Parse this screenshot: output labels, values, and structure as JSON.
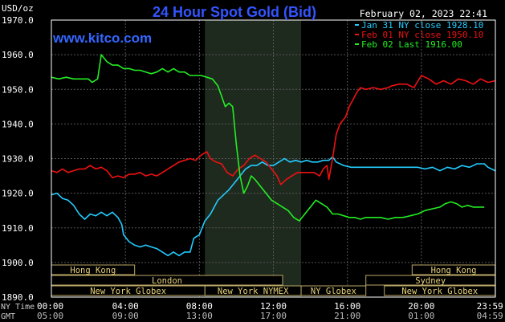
{
  "chart_data": {
    "type": "line",
    "title": "24 Hour Spot Gold (Bid)",
    "site": "www.kitco.com",
    "timestamp": "February 02, 2023 22:41",
    "ylabel": "USD/oz",
    "ylim": [
      1890,
      1970
    ],
    "yticks": [
      "1970.0",
      "1960.0",
      "1950.0",
      "1940.0",
      "1930.0",
      "1920.0",
      "1910.0",
      "1900.0",
      "1890.0"
    ],
    "grid": true,
    "legend_position": "top-right",
    "x_axis_rows": [
      {
        "label": "NY Time",
        "ticks": [
          "00:00",
          "04:00",
          "08:00",
          "12:00",
          "16:00",
          "20:00",
          "23:59"
        ]
      },
      {
        "label": "GMT",
        "ticks": [
          "05:00",
          "09:00",
          "13:00",
          "17:00",
          "21:00",
          "01:00",
          "04:59"
        ]
      }
    ],
    "shaded_period": {
      "from_hour": 8.3,
      "to_hour": 13.5
    },
    "sessions": [
      {
        "label": "Hong Kong",
        "start_hour": 0,
        "end_hour": 4.5,
        "row": 0
      },
      {
        "label": "Hong Kong",
        "start_hour": 19.5,
        "end_hour": 23.99,
        "row": 0
      },
      {
        "label": "London",
        "start_hour": 0,
        "end_hour": 12.5,
        "row": 1
      },
      {
        "label": "Sydney",
        "start_hour": 17,
        "end_hour": 23.99,
        "row": 1
      },
      {
        "label": "New York Globex",
        "start_hour": 0,
        "end_hour": 8.3,
        "row": 2
      },
      {
        "label": "New York NYMEX",
        "start_hour": 8.3,
        "end_hour": 13.5,
        "row": 2
      },
      {
        "label": "NY Globex",
        "start_hour": 13.5,
        "end_hour": 17,
        "row": 2
      },
      {
        "label": "New York Globex",
        "start_hour": 18,
        "end_hour": 23.99,
        "row": 2
      }
    ],
    "series": [
      {
        "name": "Jan 31 NY close 1928.10",
        "color": "#22ccff",
        "points": [
          [
            0,
            1919.5
          ],
          [
            0.3,
            1920
          ],
          [
            0.6,
            1918.5
          ],
          [
            0.9,
            1918
          ],
          [
            1.2,
            1916.5
          ],
          [
            1.5,
            1914
          ],
          [
            1.8,
            1912.5
          ],
          [
            2.1,
            1914
          ],
          [
            2.4,
            1913.5
          ],
          [
            2.7,
            1914.5
          ],
          [
            3.0,
            1913.5
          ],
          [
            3.3,
            1914.5
          ],
          [
            3.6,
            1913
          ],
          [
            3.8,
            1911
          ],
          [
            3.9,
            1908
          ],
          [
            4.2,
            1906
          ],
          [
            4.5,
            1905
          ],
          [
            4.8,
            1904.5
          ],
          [
            5.1,
            1905
          ],
          [
            5.4,
            1904.5
          ],
          [
            5.7,
            1904
          ],
          [
            6.0,
            1903
          ],
          [
            6.3,
            1902
          ],
          [
            6.6,
            1903
          ],
          [
            6.9,
            1902
          ],
          [
            7.2,
            1903
          ],
          [
            7.5,
            1903
          ],
          [
            7.7,
            1907
          ],
          [
            8.0,
            1908
          ],
          [
            8.3,
            1912
          ],
          [
            8.6,
            1914
          ],
          [
            9.0,
            1918
          ],
          [
            9.3,
            1919.5
          ],
          [
            9.6,
            1921
          ],
          [
            9.9,
            1923
          ],
          [
            10.2,
            1925
          ],
          [
            10.5,
            1927
          ],
          [
            10.8,
            1928
          ],
          [
            11.1,
            1928
          ],
          [
            11.4,
            1929
          ],
          [
            11.7,
            1928
          ],
          [
            12.0,
            1928
          ],
          [
            12.3,
            1929
          ],
          [
            12.6,
            1930
          ],
          [
            12.9,
            1929
          ],
          [
            13.2,
            1929.5
          ],
          [
            13.5,
            1929
          ],
          [
            13.8,
            1929.5
          ],
          [
            14.1,
            1929
          ],
          [
            14.4,
            1929
          ],
          [
            14.7,
            1929.5
          ],
          [
            15.0,
            1929.5
          ],
          [
            15.2,
            1930.5
          ],
          [
            15.4,
            1929
          ],
          [
            15.8,
            1928
          ],
          [
            16.2,
            1927.5
          ],
          [
            16.6,
            1927.5
          ],
          [
            17.0,
            1927.5
          ],
          [
            17.4,
            1927.5
          ],
          [
            17.8,
            1927.5
          ],
          [
            18.2,
            1927.5
          ],
          [
            18.6,
            1927.5
          ],
          [
            19.0,
            1927.5
          ],
          [
            19.4,
            1927.5
          ],
          [
            19.8,
            1927.5
          ],
          [
            20.2,
            1927
          ],
          [
            20.6,
            1927.5
          ],
          [
            21.0,
            1926.5
          ],
          [
            21.4,
            1927.5
          ],
          [
            21.8,
            1927
          ],
          [
            22.2,
            1928
          ],
          [
            22.6,
            1927.5
          ],
          [
            23.0,
            1928.5
          ],
          [
            23.4,
            1928.5
          ],
          [
            23.6,
            1927.5
          ],
          [
            23.99,
            1926.5
          ]
        ]
      },
      {
        "name": "Feb 01 NY close 1950.10",
        "color": "#ee1111",
        "points": [
          [
            0,
            1926.5
          ],
          [
            0.3,
            1926
          ],
          [
            0.6,
            1927
          ],
          [
            0.9,
            1926
          ],
          [
            1.2,
            1926.5
          ],
          [
            1.5,
            1927
          ],
          [
            1.8,
            1927
          ],
          [
            2.1,
            1928
          ],
          [
            2.4,
            1927
          ],
          [
            2.7,
            1927.5
          ],
          [
            3.0,
            1926.5
          ],
          [
            3.3,
            1924.5
          ],
          [
            3.6,
            1925
          ],
          [
            3.9,
            1924.5
          ],
          [
            4.2,
            1925.5
          ],
          [
            4.5,
            1925.5
          ],
          [
            4.8,
            1926
          ],
          [
            5.1,
            1925
          ],
          [
            5.4,
            1925.5
          ],
          [
            5.7,
            1925
          ],
          [
            6.0,
            1926
          ],
          [
            6.3,
            1927
          ],
          [
            6.6,
            1928
          ],
          [
            6.9,
            1929
          ],
          [
            7.2,
            1929.5
          ],
          [
            7.5,
            1930
          ],
          [
            7.8,
            1929.5
          ],
          [
            8.1,
            1931
          ],
          [
            8.4,
            1932
          ],
          [
            8.6,
            1930
          ],
          [
            8.9,
            1929
          ],
          [
            9.2,
            1928.5
          ],
          [
            9.5,
            1926
          ],
          [
            9.8,
            1925
          ],
          [
            10.1,
            1927
          ],
          [
            10.4,
            1928
          ],
          [
            10.7,
            1930
          ],
          [
            11.0,
            1931
          ],
          [
            11.3,
            1930
          ],
          [
            11.6,
            1929
          ],
          [
            11.9,
            1927
          ],
          [
            12.2,
            1925
          ],
          [
            12.4,
            1922.5
          ],
          [
            12.7,
            1924
          ],
          [
            13.0,
            1925
          ],
          [
            13.3,
            1926
          ],
          [
            13.6,
            1926
          ],
          [
            13.9,
            1926
          ],
          [
            14.2,
            1926
          ],
          [
            14.5,
            1925
          ],
          [
            14.7,
            1927
          ],
          [
            14.9,
            1928
          ],
          [
            15.0,
            1924
          ],
          [
            15.2,
            1930
          ],
          [
            15.4,
            1937
          ],
          [
            15.6,
            1940
          ],
          [
            15.9,
            1942
          ],
          [
            16.1,
            1945
          ],
          [
            16.3,
            1947
          ],
          [
            16.5,
            1949
          ],
          [
            16.7,
            1950.5
          ],
          [
            17.0,
            1950
          ],
          [
            17.4,
            1950.5
          ],
          [
            17.8,
            1950
          ],
          [
            18.2,
            1950.5
          ],
          [
            18.4,
            1951
          ],
          [
            18.8,
            1951.5
          ],
          [
            19.2,
            1951.5
          ],
          [
            19.6,
            1950.5
          ],
          [
            20.0,
            1954
          ],
          [
            20.4,
            1953
          ],
          [
            20.8,
            1951.5
          ],
          [
            21.2,
            1952.5
          ],
          [
            21.6,
            1951.5
          ],
          [
            22.0,
            1953
          ],
          [
            22.4,
            1952.5
          ],
          [
            22.8,
            1951.5
          ],
          [
            23.2,
            1953
          ],
          [
            23.6,
            1952
          ],
          [
            23.99,
            1952.5
          ]
        ]
      },
      {
        "name": "Feb 02 Last 1916.00",
        "color": "#22ee22",
        "points": [
          [
            0,
            1953.5
          ],
          [
            0.4,
            1953
          ],
          [
            0.8,
            1953.5
          ],
          [
            1.2,
            1953
          ],
          [
            1.6,
            1953
          ],
          [
            2.0,
            1953
          ],
          [
            2.2,
            1952
          ],
          [
            2.5,
            1953
          ],
          [
            2.7,
            1960
          ],
          [
            3.0,
            1958
          ],
          [
            3.3,
            1957
          ],
          [
            3.6,
            1957
          ],
          [
            3.9,
            1956
          ],
          [
            4.2,
            1956
          ],
          [
            4.5,
            1955.5
          ],
          [
            4.8,
            1955.5
          ],
          [
            5.1,
            1955
          ],
          [
            5.4,
            1954.5
          ],
          [
            5.7,
            1955
          ],
          [
            6.0,
            1956
          ],
          [
            6.3,
            1955
          ],
          [
            6.6,
            1956
          ],
          [
            6.9,
            1955
          ],
          [
            7.2,
            1955
          ],
          [
            7.5,
            1954
          ],
          [
            7.8,
            1954
          ],
          [
            8.1,
            1954
          ],
          [
            8.4,
            1953.5
          ],
          [
            8.7,
            1953
          ],
          [
            9.0,
            1951
          ],
          [
            9.2,
            1948
          ],
          [
            9.4,
            1945
          ],
          [
            9.6,
            1946
          ],
          [
            9.8,
            1945
          ],
          [
            10.0,
            1934
          ],
          [
            10.2,
            1925
          ],
          [
            10.4,
            1920
          ],
          [
            10.6,
            1922
          ],
          [
            10.8,
            1925
          ],
          [
            11.0,
            1924
          ],
          [
            11.3,
            1922
          ],
          [
            11.6,
            1920
          ],
          [
            11.9,
            1918
          ],
          [
            12.2,
            1917
          ],
          [
            12.5,
            1916
          ],
          [
            12.8,
            1915
          ],
          [
            13.1,
            1913
          ],
          [
            13.4,
            1912
          ],
          [
            13.7,
            1914
          ],
          [
            14.0,
            1916
          ],
          [
            14.3,
            1918
          ],
          [
            14.6,
            1917
          ],
          [
            14.9,
            1916
          ],
          [
            15.2,
            1914
          ],
          [
            15.5,
            1914
          ],
          [
            15.8,
            1913.5
          ],
          [
            16.1,
            1913
          ],
          [
            16.4,
            1913
          ],
          [
            16.7,
            1912.5
          ],
          [
            17.0,
            1913
          ],
          [
            17.4,
            1913
          ],
          [
            17.8,
            1913
          ],
          [
            18.2,
            1912.5
          ],
          [
            18.6,
            1913
          ],
          [
            19.0,
            1913
          ],
          [
            19.4,
            1913.5
          ],
          [
            19.8,
            1914
          ],
          [
            20.2,
            1915
          ],
          [
            20.6,
            1915.5
          ],
          [
            21.0,
            1916
          ],
          [
            21.3,
            1917
          ],
          [
            21.6,
            1917.5
          ],
          [
            21.9,
            1917
          ],
          [
            22.2,
            1916
          ],
          [
            22.5,
            1916.5
          ],
          [
            22.8,
            1916
          ],
          [
            23.1,
            1916
          ],
          [
            23.4,
            1916
          ]
        ]
      }
    ]
  }
}
